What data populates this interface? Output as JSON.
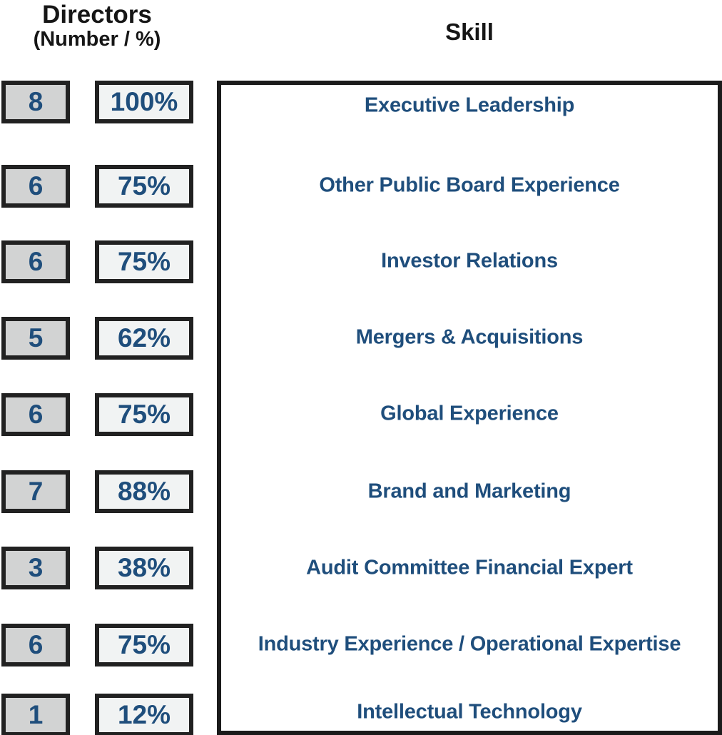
{
  "header": {
    "directors_title": "Directors",
    "directors_subtitle": "(Number / %)",
    "skill_title": "Skill"
  },
  "colors": {
    "accent_blue": "#1f4e7c",
    "number_box_fill": "#d2d3d3",
    "percent_box_fill": "#f1f3f3",
    "border_black": "#1b1b1b"
  },
  "rows": [
    {
      "number": "8",
      "percent": "100%",
      "skill": "Executive Leadership"
    },
    {
      "number": "6",
      "percent": "75%",
      "skill": "Other Public Board Experience"
    },
    {
      "number": "6",
      "percent": "75%",
      "skill": "Investor Relations"
    },
    {
      "number": "5",
      "percent": "62%",
      "skill": "Mergers & Acquisitions"
    },
    {
      "number": "6",
      "percent": "75%",
      "skill": "Global Experience"
    },
    {
      "number": "7",
      "percent": "88%",
      "skill": "Brand and Marketing"
    },
    {
      "number": "3",
      "percent": "38%",
      "skill": "Audit Committee Financial Expert"
    },
    {
      "number": "6",
      "percent": "75%",
      "skill": "Industry Experience / Operational Expertise"
    },
    {
      "number": "1",
      "percent": "12%",
      "skill": "Intellectual Technology"
    }
  ]
}
